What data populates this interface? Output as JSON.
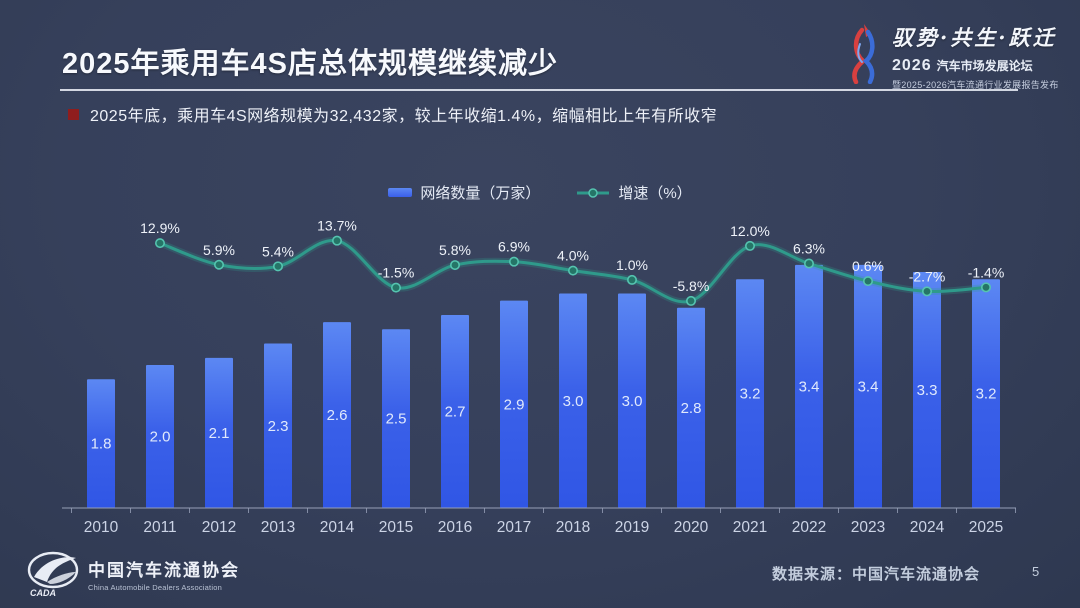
{
  "slide": {
    "title": "2025年乘用车4S店总体规模继续减少",
    "bullet_text": "2025年底，乘用车4S网络规模为32,432家，较上年收缩1.4%，缩幅相比上年有所收窄",
    "data_source": "数据来源：中国汽车流通协会",
    "page_number": "5"
  },
  "header_logo": {
    "slogan": "驭势·共生·跃迁",
    "event_year": "2026",
    "event_name": "汽车市场发展论坛",
    "event_subtitle": "暨2025-2026汽车流通行业发展报告发布"
  },
  "footer_logo": {
    "org_cn": "中国汽车流通协会",
    "org_en": "China Automobile Dealers Association",
    "abbr": "CADA"
  },
  "chart_data": {
    "type": "bar",
    "title": "",
    "categories": [
      "2010",
      "2011",
      "2012",
      "2013",
      "2014",
      "2015",
      "2016",
      "2017",
      "2018",
      "2019",
      "2020",
      "2021",
      "2022",
      "2023",
      "2024",
      "2025"
    ],
    "series": [
      {
        "name": "网络数量（万家）",
        "type": "bar",
        "values": [
          1.8,
          2.0,
          2.1,
          2.3,
          2.6,
          2.5,
          2.7,
          2.9,
          3.0,
          3.0,
          2.8,
          3.2,
          3.4,
          3.4,
          3.3,
          3.2
        ],
        "color": "#3b61e9",
        "color_top": "#5c88f3"
      },
      {
        "name": "增速（%）",
        "type": "line",
        "values": [
          null,
          12.9,
          5.9,
          5.4,
          13.7,
          -1.5,
          5.8,
          6.9,
          4.0,
          1.0,
          -5.8,
          12.0,
          6.3,
          0.6,
          -2.7,
          -1.4
        ],
        "color": "#2f9a8b",
        "marker_fill": "#257567",
        "marker_stroke": "#55c4b0"
      }
    ],
    "xlabel": "",
    "ylabel": "",
    "ylim_bar": [
      0,
      4.6
    ],
    "ylim_line": [
      -10,
      16
    ],
    "grid": false,
    "legend_position": "top-center",
    "value_labels": true,
    "axis_color": "#97a0b8",
    "label_color": "#ccd4e6"
  }
}
